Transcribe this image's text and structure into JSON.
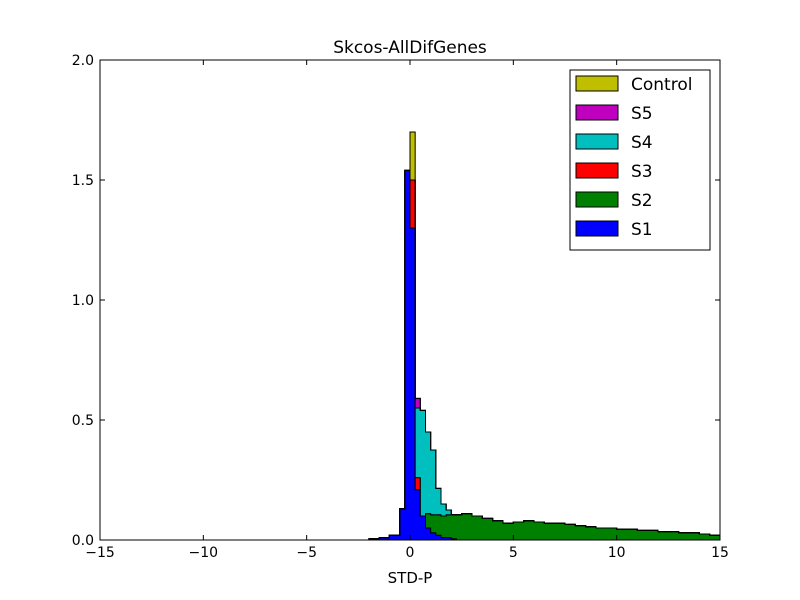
{
  "chart_data": {
    "type": "histogram",
    "title": "Skcos-AllDifGenes",
    "xlabel": "STD-P",
    "ylabel": "",
    "xlim": [
      -15,
      15
    ],
    "ylim": [
      0,
      2.0
    ],
    "stacked": true,
    "bin_edges": [
      -2.0,
      -1.5,
      -1.0,
      -0.5,
      -0.25,
      0.0,
      0.25,
      0.5,
      0.75,
      1.0,
      1.25,
      1.5,
      1.75,
      2.0,
      2.25,
      2.5,
      2.75,
      3.0,
      3.5,
      4.0,
      4.5,
      5.0,
      5.5,
      6.0,
      6.5,
      7.0,
      7.5,
      8.0,
      8.5,
      9.0,
      9.5,
      10.0,
      10.5,
      11.0,
      11.5,
      12.0,
      12.5,
      13.0,
      13.5,
      14.0,
      14.5,
      15.0
    ],
    "xticks": [
      -15,
      -10,
      -5,
      0,
      5,
      10,
      15
    ],
    "xtick_labels": [
      "−15",
      "−10",
      "−5",
      "0",
      "5",
      "10",
      "15"
    ],
    "yticks": [
      0.0,
      0.5,
      1.0,
      1.5,
      2.0
    ],
    "ytick_labels": [
      "0.0",
      "0.5",
      "1.0",
      "1.5",
      "2.0"
    ],
    "legend_position": "upper right",
    "series": [
      {
        "name": "S1",
        "color": "#0000ff",
        "values": [
          0.005,
          0.01,
          0.02,
          0.13,
          1.54,
          1.3,
          0.21,
          0.1,
          0.05,
          0.03,
          0.02,
          0.01,
          0.01,
          0.005,
          0.0,
          0.0,
          0.0,
          0.0,
          0.0,
          0.0,
          0.0,
          0.0,
          0.0,
          0.0,
          0.0,
          0.0,
          0.0,
          0.0,
          0.0,
          0.0,
          0.0,
          0.0,
          0.0,
          0.0,
          0.0,
          0.0,
          0.0,
          0.0,
          0.0,
          0.0,
          0.0
        ]
      },
      {
        "name": "S2",
        "color": "#008000",
        "values": [
          0.0,
          0.0,
          0.0,
          0.0,
          0.0,
          0.0,
          0.0,
          0.0,
          0.06,
          0.075,
          0.085,
          0.09,
          0.095,
          0.1,
          0.105,
          0.11,
          0.11,
          0.1,
          0.09,
          0.08,
          0.07,
          0.075,
          0.08,
          0.075,
          0.07,
          0.07,
          0.065,
          0.06,
          0.055,
          0.05,
          0.05,
          0.045,
          0.045,
          0.04,
          0.04,
          0.035,
          0.035,
          0.03,
          0.03,
          0.025,
          0.02
        ]
      },
      {
        "name": "S3",
        "color": "#ff0000",
        "values": [
          0.0,
          0.0,
          0.0,
          0.0,
          0.0,
          0.2,
          0.05,
          0.0,
          0.0,
          0.0,
          0.0,
          0.0,
          0.0,
          0.0,
          0.0,
          0.0,
          0.0,
          0.0,
          0.0,
          0.0,
          0.0,
          0.0,
          0.0,
          0.0,
          0.0,
          0.0,
          0.0,
          0.0,
          0.0,
          0.0,
          0.0,
          0.0,
          0.0,
          0.0,
          0.0,
          0.0,
          0.0,
          0.0,
          0.0,
          0.0,
          0.0
        ]
      },
      {
        "name": "S4",
        "color": "#00bfbf",
        "values": [
          0.0,
          0.0,
          0.0,
          0.0,
          0.0,
          0.0,
          0.29,
          0.44,
          0.34,
          0.27,
          0.11,
          0.05,
          0.02,
          0.0,
          0.0,
          0.0,
          0.0,
          0.0,
          0.0,
          0.0,
          0.0,
          0.0,
          0.0,
          0.0,
          0.0,
          0.0,
          0.0,
          0.0,
          0.0,
          0.0,
          0.0,
          0.0,
          0.0,
          0.0,
          0.0,
          0.0,
          0.0,
          0.0,
          0.0,
          0.0,
          0.0
        ]
      },
      {
        "name": "S5",
        "color": "#bf00bf",
        "values": [
          0.0,
          0.0,
          0.0,
          0.0,
          0.0,
          0.0,
          0.04,
          0.0,
          0.0,
          0.0,
          0.0,
          0.0,
          0.0,
          0.0,
          0.0,
          0.0,
          0.0,
          0.0,
          0.0,
          0.0,
          0.0,
          0.0,
          0.0,
          0.0,
          0.0,
          0.0,
          0.0,
          0.0,
          0.0,
          0.0,
          0.0,
          0.0,
          0.0,
          0.0,
          0.0,
          0.0,
          0.0,
          0.0,
          0.0,
          0.0,
          0.0
        ]
      },
      {
        "name": "Control",
        "color": "#bfbf00",
        "values": [
          0.0,
          0.0,
          0.0,
          0.0,
          0.0,
          0.2,
          0.0,
          0.0,
          0.0,
          0.0,
          0.0,
          0.0,
          0.0,
          0.0,
          0.0,
          0.0,
          0.0,
          0.0,
          0.0,
          0.0,
          0.0,
          0.0,
          0.0,
          0.0,
          0.0,
          0.0,
          0.0,
          0.0,
          0.0,
          0.0,
          0.0,
          0.0,
          0.0,
          0.0,
          0.0,
          0.0,
          0.0,
          0.0,
          0.0,
          0.0,
          0.0
        ]
      }
    ],
    "legend_order": [
      "Control",
      "S5",
      "S4",
      "S3",
      "S2",
      "S1"
    ]
  }
}
